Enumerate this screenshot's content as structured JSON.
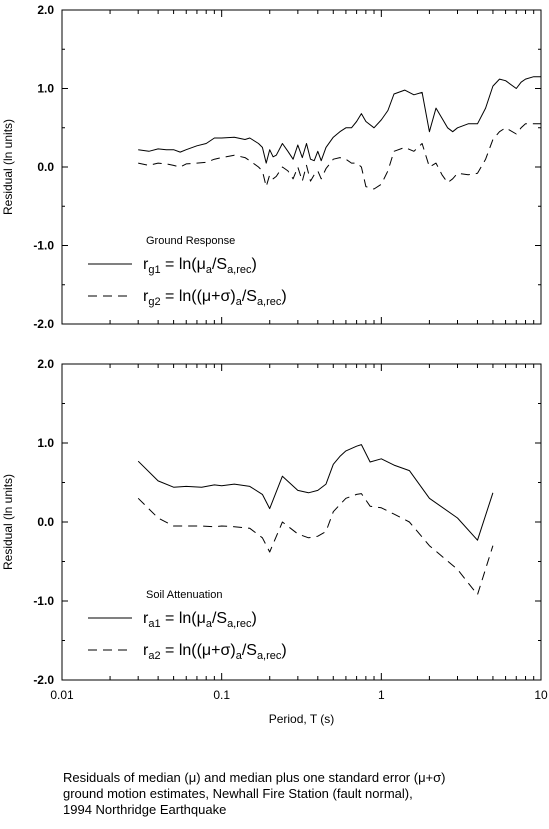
{
  "caption": {
    "line1": "Residuals of median (μ) and median plus one standard error (μ+σ)",
    "line2": "ground motion estimates, Newhall Fire Station (fault normal),",
    "line3": "1994 Northridge Earthquake"
  },
  "chart_data": [
    {
      "type": "line",
      "title": "",
      "legend_title": "Ground Response",
      "legend_position": "bottom-left",
      "grid": false,
      "x_scale": "log",
      "xlim": [
        0.01,
        10
      ],
      "ylim": [
        -2.0,
        2.0
      ],
      "ylabel": "Residual (ln units)",
      "xlabel": "",
      "yticks": [
        "2.0",
        "1.0",
        "0.0",
        "-1.0",
        "-2.0"
      ],
      "ytick_values": [
        2,
        1,
        0,
        -1,
        -2
      ],
      "xticks": [],
      "xtick_values": [
        0.01,
        0.1,
        1,
        10
      ],
      "series": [
        {
          "name": "rg1 = ln(μa/Sa,rec)",
          "label_parts": {
            "sym": "r",
            "sub": "g1",
            "body": " = ln(μ",
            "sub2": "a",
            "body2": "/S",
            "sub3": "a,rec",
            "tail": ")"
          },
          "style": "solid",
          "x": [
            0.03,
            0.035,
            0.04,
            0.045,
            0.05,
            0.055,
            0.06,
            0.07,
            0.08,
            0.09,
            0.1,
            0.12,
            0.14,
            0.15,
            0.17,
            0.18,
            0.19,
            0.2,
            0.21,
            0.22,
            0.24,
            0.26,
            0.28,
            0.3,
            0.32,
            0.34,
            0.36,
            0.38,
            0.4,
            0.42,
            0.45,
            0.5,
            0.55,
            0.6,
            0.65,
            0.7,
            0.75,
            0.8,
            0.9,
            1.0,
            1.1,
            1.2,
            1.4,
            1.6,
            1.8,
            2.0,
            2.2,
            2.4,
            2.6,
            2.8,
            3.0,
            3.5,
            4.0,
            4.5,
            5.0,
            5.5,
            6.0,
            7.0,
            7.5,
            8.0,
            9.0,
            10.0
          ],
          "y": [
            0.22,
            0.2,
            0.23,
            0.22,
            0.22,
            0.19,
            0.22,
            0.27,
            0.3,
            0.37,
            0.37,
            0.38,
            0.35,
            0.37,
            0.3,
            0.25,
            0.05,
            0.22,
            0.13,
            0.15,
            0.3,
            0.2,
            0.1,
            0.28,
            0.12,
            0.3,
            0.1,
            0.08,
            0.2,
            0.08,
            0.25,
            0.38,
            0.45,
            0.5,
            0.5,
            0.58,
            0.68,
            0.58,
            0.5,
            0.6,
            0.72,
            0.93,
            0.98,
            0.92,
            0.95,
            0.45,
            0.75,
            0.62,
            0.5,
            0.45,
            0.5,
            0.55,
            0.55,
            0.75,
            1.03,
            1.12,
            1.1,
            1.0,
            1.08,
            1.12,
            1.15,
            1.15
          ]
        },
        {
          "name": "rg2 = ln((μ+σ)a/Sa,rec)",
          "label_parts": {
            "sym": "r",
            "sub": "g2",
            "body": " = ln((μ+σ)",
            "sub2": "a",
            "body2": "/S",
            "sub3": "a,rec",
            "tail": ")"
          },
          "style": "dashed",
          "x": [
            0.03,
            0.035,
            0.04,
            0.045,
            0.05,
            0.055,
            0.06,
            0.07,
            0.08,
            0.09,
            0.1,
            0.12,
            0.14,
            0.15,
            0.17,
            0.18,
            0.19,
            0.2,
            0.21,
            0.22,
            0.24,
            0.26,
            0.28,
            0.3,
            0.32,
            0.34,
            0.36,
            0.38,
            0.4,
            0.42,
            0.45,
            0.5,
            0.55,
            0.6,
            0.65,
            0.7,
            0.75,
            0.8,
            0.9,
            1.0,
            1.1,
            1.2,
            1.4,
            1.6,
            1.8,
            2.0,
            2.2,
            2.4,
            2.6,
            2.8,
            3.0,
            3.5,
            4.0,
            4.5,
            5.0,
            5.5,
            6.0,
            7.0,
            7.5,
            8.0,
            9.0,
            10.0
          ],
          "y": [
            0.05,
            0.02,
            0.05,
            0.04,
            0.02,
            0.0,
            0.04,
            0.05,
            0.06,
            0.1,
            0.12,
            0.15,
            0.12,
            0.08,
            0.0,
            -0.05,
            -0.25,
            -0.1,
            -0.15,
            -0.12,
            0.0,
            -0.05,
            -0.15,
            0.0,
            -0.18,
            0.02,
            -0.18,
            -0.1,
            -0.05,
            -0.15,
            -0.02,
            0.1,
            0.12,
            0.1,
            0.05,
            0.05,
            0.0,
            -0.25,
            -0.28,
            -0.22,
            -0.05,
            0.2,
            0.25,
            0.2,
            0.3,
            0.0,
            0.05,
            -0.1,
            -0.2,
            -0.15,
            -0.08,
            -0.1,
            -0.08,
            0.1,
            0.35,
            0.45,
            0.5,
            0.42,
            0.5,
            0.55,
            0.55,
            0.55
          ]
        }
      ]
    },
    {
      "type": "line",
      "title": "",
      "legend_title": "Soil Attenuation",
      "legend_position": "bottom-left",
      "grid": false,
      "x_scale": "log",
      "xlim": [
        0.01,
        10
      ],
      "ylim": [
        -2.0,
        2.0
      ],
      "ylabel": "Residual (ln units)",
      "xlabel": "Period, T (s)",
      "yticks": [
        "2.0",
        "1.0",
        "0.0",
        "-1.0",
        "-2.0"
      ],
      "ytick_values": [
        2,
        1,
        0,
        -1,
        -2
      ],
      "xticks": [
        "0.01",
        "0.1",
        "1",
        "10"
      ],
      "xtick_values": [
        0.01,
        0.1,
        1,
        10
      ],
      "series": [
        {
          "name": "ra1 = ln(μa/Sa,rec)",
          "label_parts": {
            "sym": "r",
            "sub": "a1",
            "body": " = ln(μ",
            "sub2": "a",
            "body2": "/S",
            "sub3": "a,rec",
            "tail": ")"
          },
          "style": "solid",
          "x": [
            0.03,
            0.04,
            0.05,
            0.06,
            0.075,
            0.09,
            0.1,
            0.12,
            0.15,
            0.18,
            0.2,
            0.24,
            0.3,
            0.35,
            0.4,
            0.45,
            0.5,
            0.55,
            0.6,
            0.7,
            0.75,
            0.85,
            1.0,
            1.2,
            1.5,
            2.0,
            3.0,
            4.0,
            5.0
          ],
          "y": [
            0.77,
            0.52,
            0.44,
            0.45,
            0.44,
            0.47,
            0.46,
            0.48,
            0.45,
            0.35,
            0.17,
            0.58,
            0.4,
            0.37,
            0.4,
            0.48,
            0.73,
            0.83,
            0.9,
            0.96,
            0.98,
            0.76,
            0.8,
            0.72,
            0.65,
            0.3,
            0.05,
            -0.23,
            0.37
          ]
        },
        {
          "name": "ra2 = ln((μ+σ)a/Sa,rec)",
          "label_parts": {
            "sym": "r",
            "sub": "a2",
            "body": " = ln((μ+σ)",
            "sub2": "a",
            "body2": "/S",
            "sub3": "a,rec",
            "tail": ")"
          },
          "style": "dashed",
          "x": [
            0.03,
            0.04,
            0.05,
            0.06,
            0.075,
            0.09,
            0.1,
            0.12,
            0.15,
            0.18,
            0.2,
            0.24,
            0.3,
            0.35,
            0.4,
            0.45,
            0.5,
            0.55,
            0.6,
            0.7,
            0.75,
            0.85,
            1.0,
            1.2,
            1.5,
            2.0,
            3.0,
            4.0,
            5.0
          ],
          "y": [
            0.3,
            0.05,
            -0.05,
            -0.05,
            -0.05,
            -0.06,
            -0.05,
            -0.06,
            -0.08,
            -0.2,
            -0.38,
            0.0,
            -0.15,
            -0.2,
            -0.18,
            -0.12,
            0.13,
            0.22,
            0.3,
            0.35,
            0.36,
            0.2,
            0.18,
            0.1,
            0.0,
            -0.3,
            -0.6,
            -0.92,
            -0.3
          ]
        }
      ]
    }
  ]
}
